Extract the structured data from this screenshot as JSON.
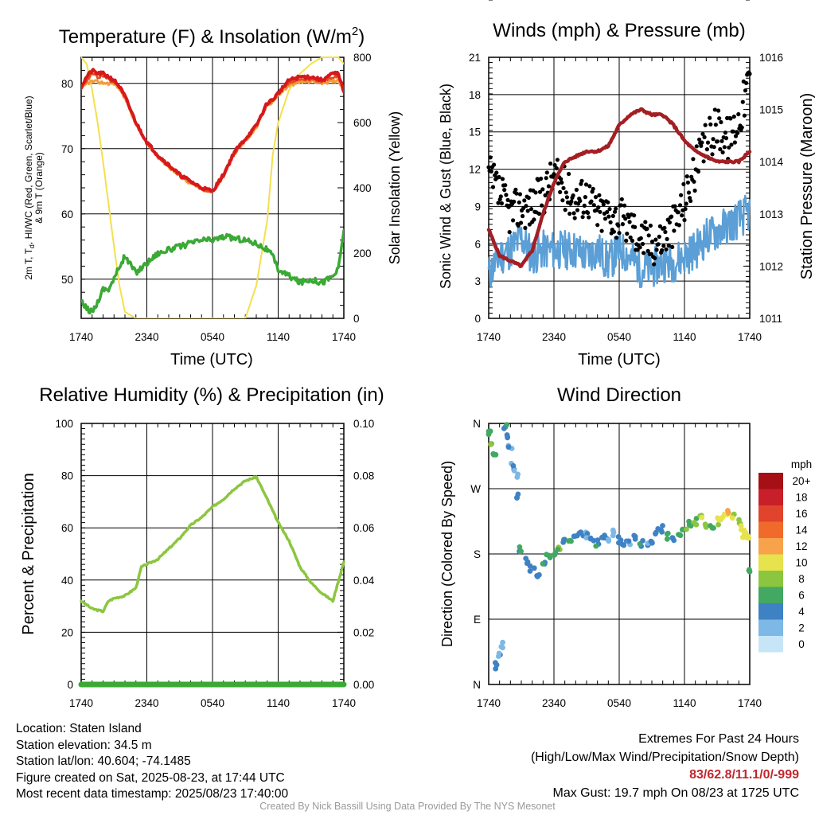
{
  "colors": {
    "red": "#d7191c",
    "green": "#3aa935",
    "scarlet": "#e44c1a",
    "orange": "#f39c3a",
    "yellow": "#f4e04d",
    "sonic_blue": "#5b9fd6",
    "gust_black": "#000000",
    "pressure_maroon": "#a31f23",
    "rh_green": "#8cc63f",
    "precip_green": "#3aa935",
    "extremes_red": "#c0272d",
    "credit_gray": "#9a9a9a"
  },
  "temperature_panel": {
    "title": "Temperature (F) & Insolation (W/m",
    "title_sup": "2",
    "title_end": ")",
    "xlabel": "Time (UTC)",
    "ylabel_line1": "2m T, T",
    "ylabel_sub": "d",
    "ylabel_line1_end": ", HI/WC (Red, Green, Scarlet/Blue)",
    "ylabel_line2": "& 9m T (Orange)",
    "y2label": "Solar Insolation (Yellow)"
  },
  "winds_panel": {
    "title": "Winds (mph) & Pressure (mb)",
    "xlabel": "Time (UTC)",
    "ylabel": "Sonic Wind & Gust (Blue, Black)",
    "y2label": "Station Pressure (Maroon)"
  },
  "rh_panel": {
    "title": "Relative Humidity (%) & Precipitation (in)",
    "ylabel": "Percent & Precipitation"
  },
  "dir_panel": {
    "title": "Wind Direction",
    "ylabel": "Direction (Colored By Speed)",
    "legend_title": "mph",
    "legend_labels": [
      "20+",
      "18",
      "16",
      "14",
      "12",
      "10",
      "8",
      "6",
      "4",
      "2",
      "0"
    ],
    "legend_colors": [
      "#a50f15",
      "#c8202a",
      "#e0442c",
      "#f06a2c",
      "#f8a24c",
      "#e6e34c",
      "#8cc63f",
      "#42a862",
      "#3f82c4",
      "#7db8e6",
      "#c6e6f8"
    ]
  },
  "info": {
    "location": "Location: Staten Island",
    "elevation": "Station elevation: 34.5 m",
    "latlon": "Station lat/lon: 40.604; -74.1485",
    "created": "Figure created on Sat, 2025-08-23, at 17:44 UTC",
    "recent": "Most recent data timestamp: 2025/08/23 17:40:00"
  },
  "extremes": {
    "line1": "Extremes For Past 24 Hours",
    "line2": "(High/Low/Max Wind/Precipitation/Snow Depth)",
    "values": "83/62.8/11.1/0/-999",
    "gust": "Max Gust: 19.7 mph On 08/23 at 1725 UTC"
  },
  "credit": "Created By Nick Bassill Using Data Provided By The NYS Mesonet",
  "chart_data": [
    {
      "type": "line",
      "title": "Temperature (F) & Insolation (W/m2)",
      "xlabel": "Time (UTC)",
      "ylabel": "2m T, Td, HI/WC (Red, Green, Scarlet/Blue) & 9m T (Orange)",
      "y2label": "Solar Insolation (Yellow)",
      "x_ticks": [
        "1740",
        "2340",
        "0540",
        "1140",
        "1740"
      ],
      "ylim": [
        44,
        84
      ],
      "y_ticks": [
        50,
        60,
        70,
        80
      ],
      "y2lim": [
        0,
        800
      ],
      "y2_ticks": [
        0,
        200,
        400,
        600,
        800
      ],
      "x_hours": [
        0,
        0.5,
        1,
        1.5,
        2,
        2.5,
        3,
        3.5,
        4,
        5,
        6,
        7,
        8,
        9,
        10,
        11,
        12,
        13,
        14,
        15,
        16,
        17,
        17.5,
        18,
        19,
        20,
        21,
        22,
        23,
        23.5,
        24
      ],
      "series": [
        {
          "name": "2m T",
          "color": "red",
          "axis": "left",
          "values": [
            79.5,
            81,
            82,
            81.5,
            81.5,
            81,
            80.5,
            79.5,
            78,
            74,
            71,
            69,
            67.5,
            66,
            65,
            64,
            63.5,
            66,
            69.5,
            71.5,
            73.5,
            77,
            77.5,
            78.5,
            80.5,
            81,
            81,
            80.5,
            81.5,
            81.5,
            78.8
          ]
        },
        {
          "name": "9m T",
          "color": "orange",
          "axis": "left",
          "values": [
            79,
            80,
            80.3,
            80.2,
            80.1,
            80,
            80,
            79.2,
            77.8,
            73.8,
            70.8,
            68.8,
            67.2,
            65.8,
            64.7,
            63.8,
            63.3,
            65.8,
            69.2,
            71.2,
            73.2,
            76.7,
            77.2,
            78.2,
            79.7,
            80.2,
            80.4,
            80.1,
            80.3,
            80.6,
            79
          ]
        },
        {
          "name": "HI/WC",
          "color": "scarlet",
          "axis": "left",
          "values": [
            79.5,
            80.5,
            81.5,
            81,
            81,
            80.5,
            80.3,
            79.4,
            77.9,
            73.9,
            70.9,
            68.9,
            67.4,
            65.9,
            64.9,
            63.9,
            63.4,
            65.9,
            69.4,
            71.4,
            73.4,
            76.8,
            77.4,
            78.4,
            80.2,
            80.6,
            80.7,
            80.3,
            81,
            81.1,
            78.9
          ]
        },
        {
          "name": "Td",
          "color": "green",
          "axis": "left",
          "values": [
            46.5,
            45.5,
            45,
            46.5,
            48.5,
            48.5,
            50,
            52,
            53.5,
            51,
            52.5,
            54,
            54.5,
            55,
            55.5,
            56,
            56,
            56.5,
            56.3,
            56,
            55.5,
            54.5,
            53.5,
            51.5,
            50.5,
            49.5,
            50,
            49.5,
            50.5,
            51.5,
            57.5
          ]
        },
        {
          "name": "Solar",
          "color": "yellow",
          "axis": "right",
          "values": [
            800,
            780,
            700,
            600,
            480,
            350,
            220,
            100,
            20,
            0,
            0,
            0,
            0,
            0,
            0,
            0,
            0,
            0,
            0,
            0,
            100,
            300,
            500,
            600,
            700,
            750,
            780,
            800,
            800,
            800,
            780
          ]
        }
      ]
    },
    {
      "type": "line",
      "title": "Winds (mph) & Pressure (mb)",
      "xlabel": "Time (UTC)",
      "ylabel": "Sonic Wind & Gust (Blue, Black)",
      "y2label": "Station Pressure (Maroon)",
      "x_ticks": [
        "1740",
        "2340",
        "0540",
        "1140",
        "1740"
      ],
      "ylim": [
        0,
        21
      ],
      "y_ticks": [
        0,
        3,
        6,
        9,
        12,
        15,
        18,
        21
      ],
      "y2lim": [
        1011,
        1016
      ],
      "y2_ticks": [
        1011,
        1012,
        1013,
        1014,
        1015,
        1016
      ],
      "x_hours": [
        0,
        1,
        2,
        3,
        4,
        5,
        6,
        7,
        8,
        9,
        10,
        11,
        12,
        13,
        14,
        15,
        16,
        17,
        18,
        19,
        20,
        21,
        22,
        23,
        24
      ],
      "series": [
        {
          "name": "Sonic Wind",
          "color": "sonic_blue",
          "axis": "left",
          "values": [
            3.5,
            5,
            5.5,
            6.5,
            5,
            5.5,
            5.5,
            5.5,
            5.5,
            5,
            5.5,
            4.5,
            5.5,
            5,
            4,
            4,
            4.5,
            4.5,
            5,
            5.5,
            6.5,
            7,
            7.5,
            8,
            8.5
          ]
        },
        {
          "name": "Gust",
          "color": "gust_black",
          "axis": "left",
          "values": [
            11.5,
            10,
            8.5,
            9,
            9,
            10,
            11.5,
            10.5,
            9.5,
            10,
            8.5,
            8.5,
            8,
            7.5,
            6.5,
            6,
            6.5,
            7.5,
            9.5,
            12,
            14,
            15.5,
            14.5,
            16,
            19.5
          ]
        },
        {
          "name": "Pressure",
          "color": "pressure_maroon",
          "axis": "right",
          "values": [
            1012.7,
            1012.2,
            1012.1,
            1012.0,
            1012.3,
            1013.0,
            1013.6,
            1014.0,
            1014.1,
            1014.2,
            1014.2,
            1014.3,
            1014.7,
            1014.9,
            1015.0,
            1014.9,
            1014.9,
            1014.7,
            1014.4,
            1014.2,
            1014.1,
            1014.0,
            1014.0,
            1014.0,
            1014.2
          ]
        }
      ]
    },
    {
      "type": "line",
      "title": "Relative Humidity (%) & Precipitation (in)",
      "ylabel": "Percent & Precipitation",
      "x_ticks": [
        "1740",
        "2340",
        "0540",
        "1140",
        "1740"
      ],
      "ylim": [
        0,
        100
      ],
      "y_ticks": [
        0,
        20,
        40,
        60,
        80,
        100
      ],
      "y2lim": [
        0,
        0.1
      ],
      "y2_ticks": [
        "0.00",
        "0.02",
        "0.04",
        "0.06",
        "0.08",
        "0.10"
      ],
      "x_hours": [
        0,
        1,
        2,
        2.5,
        3,
        4,
        5,
        5.5,
        6,
        7,
        8,
        9,
        10,
        11,
        12,
        13,
        14,
        15,
        16,
        17,
        18,
        19,
        20,
        21,
        22,
        23,
        24
      ],
      "series": [
        {
          "name": "Relative Humidity",
          "color": "rh_green",
          "axis": "left",
          "values": [
            32,
            29,
            28,
            32,
            33,
            34,
            37,
            45,
            46,
            48,
            52,
            56,
            61,
            64,
            68,
            71,
            75,
            78,
            79.5,
            71,
            62,
            55,
            45,
            39,
            35,
            32,
            47
          ]
        },
        {
          "name": "Precipitation",
          "color": "precip_green",
          "axis": "right",
          "values": [
            0,
            0,
            0,
            0,
            0,
            0,
            0,
            0,
            0,
            0,
            0,
            0,
            0,
            0,
            0,
            0,
            0,
            0,
            0,
            0,
            0,
            0,
            0,
            0,
            0,
            0,
            0
          ]
        }
      ]
    },
    {
      "type": "scatter",
      "title": "Wind Direction",
      "ylabel": "Direction (Colored By Speed)",
      "x_ticks": [
        "1740",
        "2340",
        "0540",
        "1140",
        "1740"
      ],
      "y_ticks": [
        "N",
        "E",
        "S",
        "W",
        "N"
      ],
      "ylim": [
        0,
        360
      ],
      "legend_title": "mph",
      "series": [
        {
          "name": "Wind Direction",
          "x_hours": [
            0,
            0.3,
            0.5,
            0.8,
            1.0,
            1.2,
            1.5,
            1.8,
            2.0,
            2.2,
            2.5,
            2.8,
            3.0,
            3.5,
            4.0,
            4.5,
            5.0,
            5.5,
            6.0,
            6.5,
            7.0,
            7.5,
            8.0,
            8.5,
            9.0,
            9.5,
            10.0,
            10.5,
            11.0,
            11.5,
            12.0,
            12.5,
            13.0,
            13.5,
            14.0,
            14.5,
            15.0,
            15.5,
            16.0,
            16.5,
            17.0,
            17.5,
            18.0,
            18.5,
            19.0,
            19.5,
            20.0,
            20.5,
            21.0,
            21.5,
            22.0,
            22.5,
            23.0,
            23.3,
            23.5,
            23.8,
            24.0
          ],
          "direction_deg": [
            345,
            335,
            320,
            25,
            40,
            55,
            355,
            340,
            325,
            300,
            290,
            260,
            185,
            170,
            160,
            150,
            165,
            175,
            180,
            190,
            195,
            200,
            205,
            210,
            205,
            200,
            195,
            205,
            200,
            210,
            200,
            195,
            198,
            205,
            195,
            190,
            200,
            210,
            215,
            205,
            200,
            210,
            215,
            220,
            225,
            230,
            220,
            215,
            225,
            230,
            235,
            230,
            225,
            215,
            205,
            200,
            160
          ],
          "speed_mph": [
            6,
            7,
            6,
            4,
            3,
            2,
            5,
            4,
            3,
            3,
            2,
            4,
            5,
            4,
            4,
            4,
            5,
            6,
            6,
            7,
            5,
            6,
            5,
            4,
            3,
            4,
            5,
            4,
            3,
            2,
            4,
            4,
            3,
            4,
            5,
            3,
            4,
            5,
            4,
            6,
            5,
            6,
            7,
            6,
            7,
            9,
            8,
            7,
            9,
            10,
            11,
            9,
            8,
            10,
            9,
            9,
            6
          ]
        }
      ]
    }
  ]
}
